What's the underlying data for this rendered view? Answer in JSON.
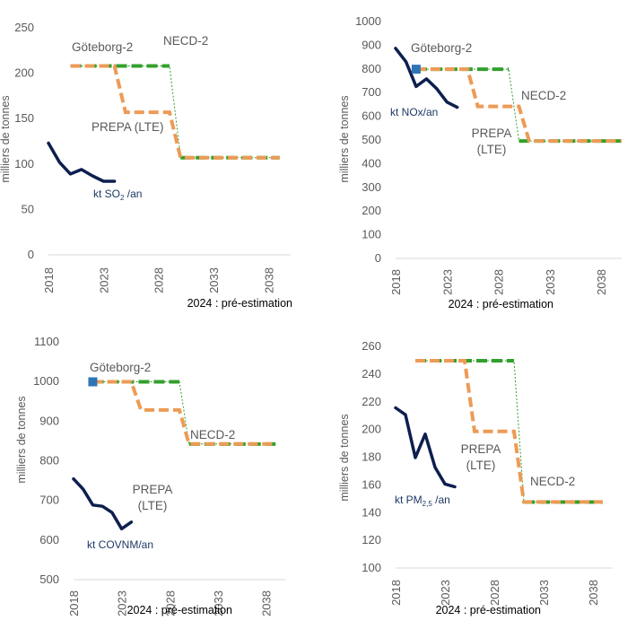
{
  "note": "2024 : pré-estimation",
  "colors": {
    "observed": "#0d1f4e",
    "prepa": "#ed9b56",
    "necd": "#33a02c",
    "goteborg_marker": "#2e75b6"
  },
  "chart_data": [
    {
      "id": "so2",
      "type": "line",
      "ylabel": "milliers de tonnes",
      "ylim": [
        0,
        250
      ],
      "yticks": [
        0,
        50,
        100,
        150,
        200,
        250
      ],
      "xlim": [
        2018,
        2040
      ],
      "xticks": [
        2018,
        2023,
        2028,
        2033,
        2038
      ],
      "note": "2024 : pré-estimation",
      "labels": {
        "goteborg": "Göteborg-2",
        "necd": "NECD-2",
        "prepa": "PREPA (LTE)",
        "obs_main": "kt SO",
        "obs_sub": "2",
        "obs_tail": " /an"
      },
      "series": [
        {
          "key": "observed",
          "x": [
            2018,
            2019,
            2020,
            2021,
            2022,
            2023,
            2024
          ],
          "y": [
            122,
            101,
            88,
            93,
            86,
            80,
            80
          ]
        },
        {
          "key": "prepa",
          "x": [
            2020,
            2024,
            2025,
            2029,
            2030,
            2039
          ],
          "y": [
            207,
            207,
            156,
            156,
            106,
            106
          ]
        },
        {
          "key": "necd",
          "x": [
            2020,
            2029,
            2030,
            2039
          ],
          "y": [
            207,
            207,
            106,
            106
          ]
        }
      ]
    },
    {
      "id": "nox",
      "type": "line",
      "ylabel": "milliers de tonnes",
      "ylim": [
        0,
        1000
      ],
      "yticks": [
        0,
        100,
        200,
        300,
        400,
        500,
        600,
        700,
        800,
        900,
        1000
      ],
      "xlim": [
        2018,
        2040
      ],
      "xticks": [
        2018,
        2023,
        2028,
        2033,
        2038
      ],
      "note": "2024 : pré-estimation",
      "labels": {
        "goteborg": "Göteborg-2",
        "necd": "NECD-2",
        "prepa": "PREPA",
        "prepa2": "(LTE)",
        "obs_main": "kt NOx/an"
      },
      "marker": {
        "x": 2020,
        "y": 795
      },
      "series": [
        {
          "key": "observed",
          "x": [
            2018,
            2019,
            2020,
            2021,
            2022,
            2023,
            2024
          ],
          "y": [
            883,
            827,
            722,
            754,
            713,
            656,
            634
          ]
        },
        {
          "key": "prepa",
          "x": [
            2020,
            2025,
            2026,
            2030,
            2031,
            2040
          ],
          "y": [
            795,
            795,
            638,
            638,
            492,
            492
          ]
        },
        {
          "key": "necd",
          "x": [
            2020,
            2029,
            2030,
            2040
          ],
          "y": [
            795,
            795,
            492,
            492
          ]
        }
      ]
    },
    {
      "id": "covnm",
      "type": "line",
      "ylabel": "milliers de tonnes",
      "ylim": [
        500,
        1100
      ],
      "yticks": [
        500,
        600,
        700,
        800,
        900,
        1000,
        1100
      ],
      "xlim": [
        2018,
        2040
      ],
      "xticks": [
        2018,
        2023,
        2028,
        2033,
        2038
      ],
      "note": "2024 : pré-estimation",
      "labels": {
        "goteborg": "Göteborg-2",
        "necd": "NECD-2",
        "prepa": "PREPA",
        "prepa2": "(LTE)",
        "obs_main": "kt COVNM/an"
      },
      "marker": {
        "x": 2020,
        "y": 997
      },
      "series": [
        {
          "key": "observed",
          "x": [
            2018,
            2019,
            2020,
            2021,
            2022,
            2023,
            2024
          ],
          "y": [
            752,
            726,
            686,
            683,
            667,
            626,
            643
          ]
        },
        {
          "key": "prepa",
          "x": [
            2020,
            2024,
            2025,
            2029,
            2030,
            2039
          ],
          "y": [
            997,
            997,
            926,
            926,
            840,
            840
          ]
        },
        {
          "key": "necd",
          "x": [
            2020,
            2029,
            2030,
            2039
          ],
          "y": [
            997,
            997,
            840,
            840
          ]
        }
      ]
    },
    {
      "id": "pm25",
      "type": "line",
      "ylabel": "milliers de tonnes",
      "ylim": [
        100,
        260
      ],
      "yticks": [
        100,
        120,
        140,
        160,
        180,
        200,
        220,
        240,
        260
      ],
      "xlim": [
        2018,
        2040
      ],
      "xticks": [
        2018,
        2023,
        2028,
        2033,
        2038
      ],
      "note": "2024 : pré-estimation",
      "labels": {
        "necd": "NECD-2",
        "prepa": "PREPA",
        "prepa2": "(LTE)",
        "obs_main": "kt PM",
        "obs_sub": "2,5",
        "obs_tail": " /an"
      },
      "series": [
        {
          "key": "observed",
          "x": [
            2018,
            2019,
            2020,
            2021,
            2022,
            2023,
            2024
          ],
          "y": [
            215,
            210,
            179,
            196,
            172,
            160,
            158
          ]
        },
        {
          "key": "prepa",
          "x": [
            2020,
            2025,
            2026,
            2030,
            2031,
            2039
          ],
          "y": [
            249,
            249,
            198,
            198,
            147,
            147
          ]
        },
        {
          "key": "necd",
          "x": [
            2020,
            2030,
            2031,
            2039
          ],
          "y": [
            249,
            249,
            147,
            147
          ]
        }
      ]
    }
  ]
}
